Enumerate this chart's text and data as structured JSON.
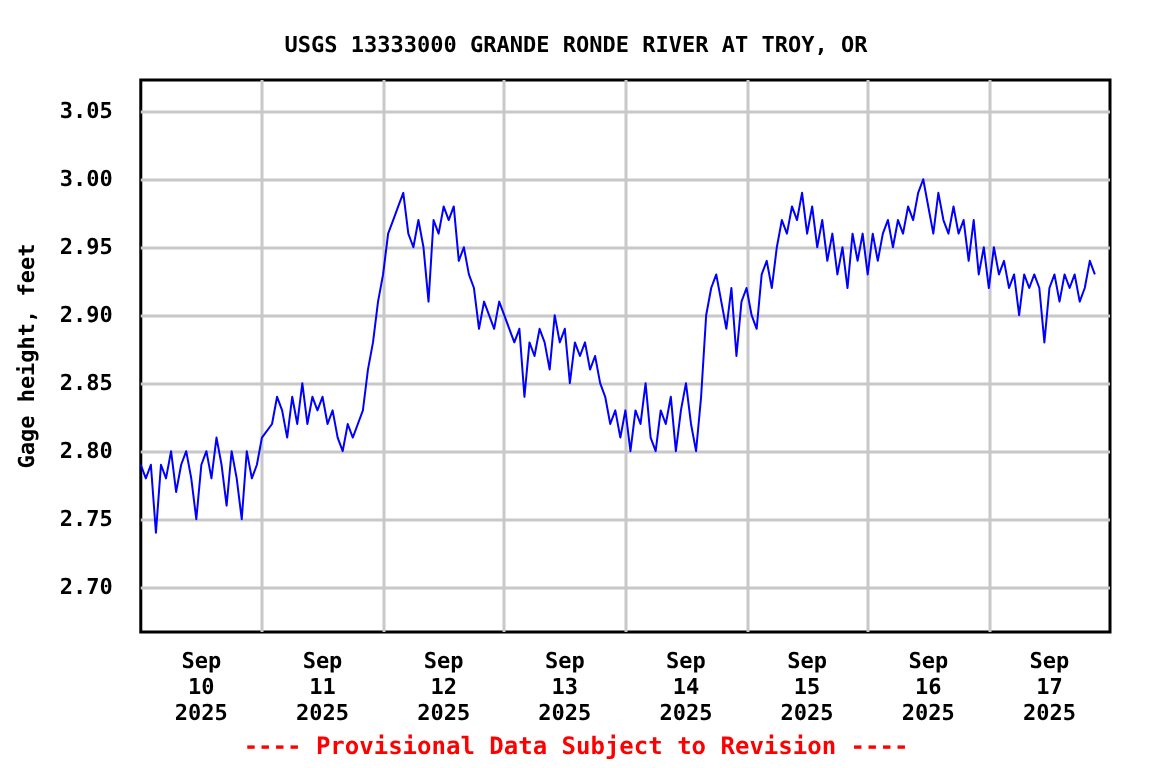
{
  "chart_data": {
    "type": "line",
    "title": "USGS 13333000 GRANDE RONDE RIVER AT TROY, OR",
    "ylabel": "Gage height, feet",
    "annotations": [
      "---- Provisional Data Subject to Revision ----"
    ],
    "xlim": [
      "2025-09-10T00:00",
      "2025-09-18T00:00"
    ],
    "xticks": [
      {
        "value": "2025-09-10T12:00",
        "label": "Sep\n10\n2025"
      },
      {
        "value": "2025-09-11T12:00",
        "label": "Sep\n11\n2025"
      },
      {
        "value": "2025-09-12T12:00",
        "label": "Sep\n12\n2025"
      },
      {
        "value": "2025-09-13T12:00",
        "label": "Sep\n13\n2025"
      },
      {
        "value": "2025-09-14T12:00",
        "label": "Sep\n14\n2025"
      },
      {
        "value": "2025-09-15T12:00",
        "label": "Sep\n15\n2025"
      },
      {
        "value": "2025-09-16T12:00",
        "label": "Sep\n16\n2025"
      },
      {
        "value": "2025-09-17T12:00",
        "label": "Sep\n17\n2025"
      },
      {
        "value": "2025-09-11T00:00",
        "label": null
      },
      {
        "value": "2025-09-12T00:00",
        "label": null
      },
      {
        "value": "2025-09-13T00:00",
        "label": null
      },
      {
        "value": "2025-09-14T00:00",
        "label": null
      },
      {
        "value": "2025-09-15T00:00",
        "label": null
      },
      {
        "value": "2025-09-16T00:00",
        "label": null
      },
      {
        "value": "2025-09-17T00:00",
        "label": null
      }
    ],
    "ylim": [
      2.667,
      3.073
    ],
    "yticks": [
      {
        "value": 2.7,
        "label": "2.70"
      },
      2.75,
      {
        "value": 2.8,
        "label": "2.80"
      },
      2.85,
      {
        "value": 2.9,
        "label": "2.90"
      },
      2.95,
      {
        "value": 3.0,
        "label": "3.00"
      },
      3.05
    ],
    "grid": true,
    "marker": "none",
    "line_style": "solid",
    "series": [
      {
        "color": "#0000ff",
        "x": [
          "2025-09-10T00:00",
          "2025-09-10T01:00",
          "2025-09-10T02:00",
          "2025-09-10T03:00",
          "2025-09-10T04:00",
          "2025-09-10T05:00",
          "2025-09-10T06:00",
          "2025-09-10T07:00",
          "2025-09-10T08:00",
          "2025-09-10T09:00",
          "2025-09-10T10:00",
          "2025-09-10T11:00",
          "2025-09-10T12:00",
          "2025-09-10T13:00",
          "2025-09-10T14:00",
          "2025-09-10T15:00",
          "2025-09-10T16:00",
          "2025-09-10T17:00",
          "2025-09-10T18:00",
          "2025-09-10T19:00",
          "2025-09-10T20:00",
          "2025-09-10T21:00",
          "2025-09-10T22:00",
          "2025-09-10T23:00",
          "2025-09-11T00:00",
          "2025-09-11T02:00",
          "2025-09-11T03:00",
          "2025-09-11T04:00",
          "2025-09-11T05:00",
          "2025-09-11T06:00",
          "2025-09-11T07:00",
          "2025-09-11T08:00",
          "2025-09-11T09:00",
          "2025-09-11T10:00",
          "2025-09-11T11:00",
          "2025-09-11T12:00",
          "2025-09-11T13:00",
          "2025-09-11T14:00",
          "2025-09-11T15:00",
          "2025-09-11T16:00",
          "2025-09-11T17:00",
          "2025-09-11T18:00",
          "2025-09-11T19:00",
          "2025-09-11T20:00",
          "2025-09-11T21:00",
          "2025-09-11T22:00",
          "2025-09-11T23:00",
          "2025-09-12T00:00",
          "2025-09-12T01:00",
          "2025-09-12T02:00",
          "2025-09-12T03:00",
          "2025-09-12T04:00",
          "2025-09-12T05:00",
          "2025-09-12T06:00",
          "2025-09-12T07:00",
          "2025-09-12T08:00",
          "2025-09-12T09:00",
          "2025-09-12T10:00",
          "2025-09-12T11:00",
          "2025-09-12T12:00",
          "2025-09-12T13:00",
          "2025-09-12T14:00",
          "2025-09-12T15:00",
          "2025-09-12T16:00",
          "2025-09-12T17:00",
          "2025-09-12T18:00",
          "2025-09-12T19:00",
          "2025-09-12T20:00",
          "2025-09-12T21:00",
          "2025-09-12T22:00",
          "2025-09-12T23:00",
          "2025-09-13T00:00",
          "2025-09-13T01:00",
          "2025-09-13T02:00",
          "2025-09-13T03:00",
          "2025-09-13T04:00",
          "2025-09-13T05:00",
          "2025-09-13T06:00",
          "2025-09-13T07:00",
          "2025-09-13T08:00",
          "2025-09-13T09:00",
          "2025-09-13T10:00",
          "2025-09-13T11:00",
          "2025-09-13T12:00",
          "2025-09-13T13:00",
          "2025-09-13T14:00",
          "2025-09-13T15:00",
          "2025-09-13T16:00",
          "2025-09-13T17:00",
          "2025-09-13T18:00",
          "2025-09-13T19:00",
          "2025-09-13T20:00",
          "2025-09-13T21:00",
          "2025-09-13T22:00",
          "2025-09-13T23:00",
          "2025-09-14T00:00",
          "2025-09-14T01:00",
          "2025-09-14T02:00",
          "2025-09-14T03:00",
          "2025-09-14T04:00",
          "2025-09-14T05:00",
          "2025-09-14T06:00",
          "2025-09-14T07:00",
          "2025-09-14T08:00",
          "2025-09-14T09:00",
          "2025-09-14T10:00",
          "2025-09-14T11:00",
          "2025-09-14T12:00",
          "2025-09-14T13:00",
          "2025-09-14T14:00",
          "2025-09-14T15:00",
          "2025-09-14T16:00",
          "2025-09-14T17:00",
          "2025-09-14T18:00",
          "2025-09-14T19:00",
          "2025-09-14T20:00",
          "2025-09-14T21:00",
          "2025-09-14T22:00",
          "2025-09-14T23:00",
          "2025-09-15T00:00",
          "2025-09-15T01:00",
          "2025-09-15T02:00",
          "2025-09-15T03:00",
          "2025-09-15T04:00",
          "2025-09-15T05:00",
          "2025-09-15T06:00",
          "2025-09-15T07:00",
          "2025-09-15T08:00",
          "2025-09-15T09:00",
          "2025-09-15T10:00",
          "2025-09-15T11:00",
          "2025-09-15T12:00",
          "2025-09-15T13:00",
          "2025-09-15T14:00",
          "2025-09-15T15:00",
          "2025-09-15T16:00",
          "2025-09-15T17:00",
          "2025-09-15T18:00",
          "2025-09-15T19:00",
          "2025-09-15T20:00",
          "2025-09-15T21:00",
          "2025-09-15T22:00",
          "2025-09-15T23:00",
          "2025-09-16T00:00",
          "2025-09-16T01:00",
          "2025-09-16T02:00",
          "2025-09-16T03:00",
          "2025-09-16T04:00",
          "2025-09-16T05:00",
          "2025-09-16T06:00",
          "2025-09-16T07:00",
          "2025-09-16T08:00",
          "2025-09-16T09:00",
          "2025-09-16T10:00",
          "2025-09-16T11:00",
          "2025-09-16T12:00",
          "2025-09-16T13:00",
          "2025-09-16T14:00",
          "2025-09-16T15:00",
          "2025-09-16T16:00",
          "2025-09-16T17:00",
          "2025-09-16T18:00",
          "2025-09-16T19:00",
          "2025-09-16T20:00",
          "2025-09-16T21:00",
          "2025-09-16T22:00",
          "2025-09-16T23:00",
          "2025-09-17T00:00",
          "2025-09-17T01:00",
          "2025-09-17T02:00",
          "2025-09-17T03:00",
          "2025-09-17T04:00",
          "2025-09-17T05:00",
          "2025-09-17T06:00",
          "2025-09-17T07:00",
          "2025-09-17T08:00",
          "2025-09-17T09:00",
          "2025-09-17T10:00",
          "2025-09-17T11:00",
          "2025-09-17T12:00",
          "2025-09-17T13:00",
          "2025-09-17T14:00",
          "2025-09-17T15:00",
          "2025-09-17T16:00",
          "2025-09-17T17:00",
          "2025-09-17T18:00",
          "2025-09-17T19:00",
          "2025-09-17T20:00",
          "2025-09-17T21:00"
        ],
        "values": [
          2.79,
          2.78,
          2.79,
          2.74,
          2.79,
          2.78,
          2.8,
          2.77,
          2.79,
          2.8,
          2.78,
          2.75,
          2.79,
          2.8,
          2.78,
          2.81,
          2.79,
          2.76,
          2.8,
          2.78,
          2.75,
          2.8,
          2.78,
          2.79,
          2.81,
          2.82,
          2.84,
          2.83,
          2.81,
          2.84,
          2.82,
          2.85,
          2.82,
          2.84,
          2.83,
          2.84,
          2.82,
          2.83,
          2.81,
          2.8,
          2.82,
          2.81,
          2.82,
          2.83,
          2.86,
          2.88,
          2.91,
          2.93,
          2.96,
          2.97,
          2.98,
          2.99,
          2.96,
          2.95,
          2.97,
          2.95,
          2.91,
          2.97,
          2.96,
          2.98,
          2.97,
          2.98,
          2.94,
          2.95,
          2.93,
          2.92,
          2.89,
          2.91,
          2.9,
          2.89,
          2.91,
          2.9,
          2.89,
          2.88,
          2.89,
          2.84,
          2.88,
          2.87,
          2.89,
          2.88,
          2.86,
          2.9,
          2.88,
          2.89,
          2.85,
          2.88,
          2.87,
          2.88,
          2.86,
          2.87,
          2.85,
          2.84,
          2.82,
          2.83,
          2.81,
          2.83,
          2.8,
          2.83,
          2.82,
          2.85,
          2.81,
          2.8,
          2.83,
          2.82,
          2.84,
          2.8,
          2.83,
          2.85,
          2.82,
          2.8,
          2.84,
          2.9,
          2.92,
          2.93,
          2.91,
          2.89,
          2.92,
          2.87,
          2.91,
          2.92,
          2.9,
          2.89,
          2.93,
          2.94,
          2.92,
          2.95,
          2.97,
          2.96,
          2.98,
          2.97,
          2.99,
          2.96,
          2.98,
          2.95,
          2.97,
          2.94,
          2.96,
          2.93,
          2.95,
          2.92,
          2.96,
          2.94,
          2.96,
          2.93,
          2.96,
          2.94,
          2.96,
          2.97,
          2.95,
          2.97,
          2.96,
          2.98,
          2.97,
          2.99,
          3.0,
          2.98,
          2.96,
          2.99,
          2.97,
          2.96,
          2.98,
          2.96,
          2.97,
          2.94,
          2.97,
          2.93,
          2.95,
          2.92,
          2.95,
          2.93,
          2.94,
          2.92,
          2.93,
          2.9,
          2.93,
          2.92,
          2.93,
          2.92,
          2.88,
          2.92,
          2.93,
          2.91,
          2.93,
          2.92,
          2.93,
          2.91,
          2.92,
          2.94,
          2.93
        ]
      }
    ]
  }
}
